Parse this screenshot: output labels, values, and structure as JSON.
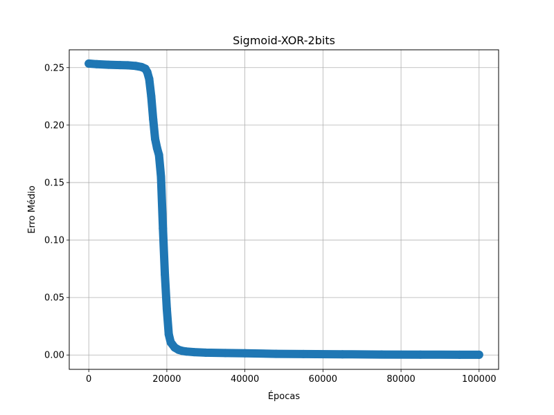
{
  "chart_data": {
    "type": "scatter",
    "title": "Sigmoid-XOR-2bits",
    "xlabel": "Épocas",
    "ylabel": "Erro Médio",
    "xlim": [
      -5000,
      105000
    ],
    "ylim": [
      -0.0125,
      0.2655
    ],
    "grid": true,
    "legend": "none",
    "x_ticks": [
      0,
      20000,
      40000,
      60000,
      80000,
      100000
    ],
    "x_tick_labels": [
      "0",
      "20000",
      "40000",
      "60000",
      "80000",
      "100000"
    ],
    "y_ticks": [
      0.0,
      0.05,
      0.1,
      0.15,
      0.2,
      0.25
    ],
    "y_tick_labels": [
      "0.00",
      "0.05",
      "0.10",
      "0.15",
      "0.20",
      "0.25"
    ],
    "series": [
      {
        "color": "#1f77b4",
        "marker": "circle",
        "x": [
          0,
          2000,
          5000,
          8000,
          10000,
          12000,
          13500,
          14500,
          15000,
          15500,
          16000,
          16500,
          17000,
          17500,
          18000,
          18500,
          19000,
          19500,
          20000,
          20500,
          21000,
          22000,
          23000,
          24000,
          25000,
          27000,
          30000,
          35000,
          40000,
          48000,
          55000,
          65000,
          75000,
          85000,
          95000,
          100000
        ],
        "y": [
          0.2535,
          0.253,
          0.2525,
          0.2522,
          0.252,
          0.2515,
          0.2505,
          0.249,
          0.246,
          0.24,
          0.225,
          0.205,
          0.188,
          0.18,
          0.174,
          0.155,
          0.11,
          0.07,
          0.04,
          0.018,
          0.011,
          0.0065,
          0.0045,
          0.0035,
          0.003,
          0.0025,
          0.002,
          0.0017,
          0.0015,
          0.001,
          0.0008,
          0.0006,
          0.0004,
          0.0003,
          0.0002,
          0.0002
        ]
      }
    ]
  }
}
